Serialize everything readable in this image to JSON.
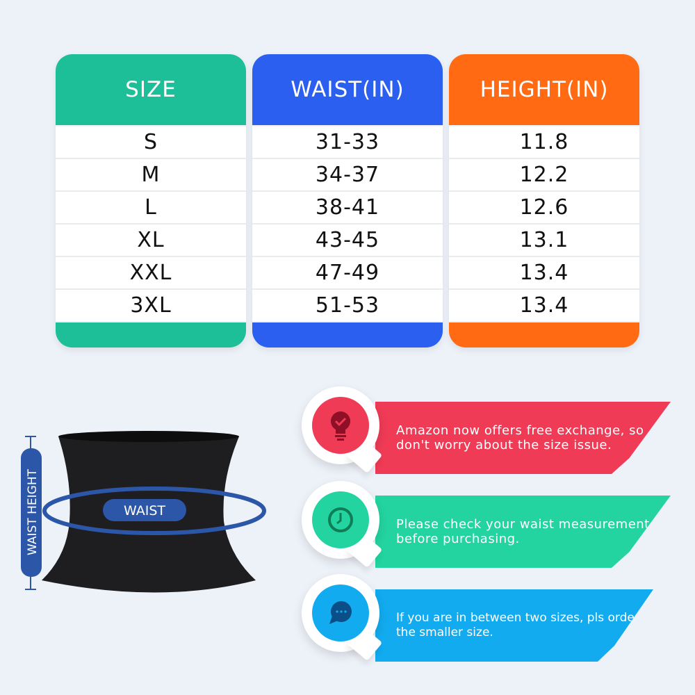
{
  "table": {
    "columns": [
      {
        "header": "SIZE",
        "color": "#1dbf98",
        "values": [
          "S",
          "M",
          "L",
          "XL",
          "XXL",
          "3XL"
        ]
      },
      {
        "header": "WAIST(IN)",
        "color": "#2a5ff0",
        "values": [
          "31-33",
          "34-37",
          "38-41",
          "43-45",
          "47-49",
          "51-53"
        ]
      },
      {
        "header": "HEIGHT(IN)",
        "color": "#ff6a12",
        "values": [
          "11.8",
          "12.2",
          "12.6",
          "13.1",
          "13.4",
          "13.4"
        ]
      }
    ]
  },
  "diagram": {
    "waist_label": "WAIST",
    "height_label": "WAIST HEIGHT",
    "accent": "#2c56a8"
  },
  "tips": [
    {
      "text_1": "Amazon now offers free exchange, so",
      "text_2": "don't worry about the size issue.",
      "icon": "lightbulb-check-icon",
      "color": "#ef3b56"
    },
    {
      "text_1": "Please check your waist measurement",
      "text_2": "before purchasing.",
      "icon": "clock-icon",
      "color": "#23d4a0"
    },
    {
      "text_1": "If you are in between two sizes, pls order",
      "text_2": "the smaller size.",
      "icon": "chat-bubble-icon",
      "color": "#12abef"
    }
  ]
}
